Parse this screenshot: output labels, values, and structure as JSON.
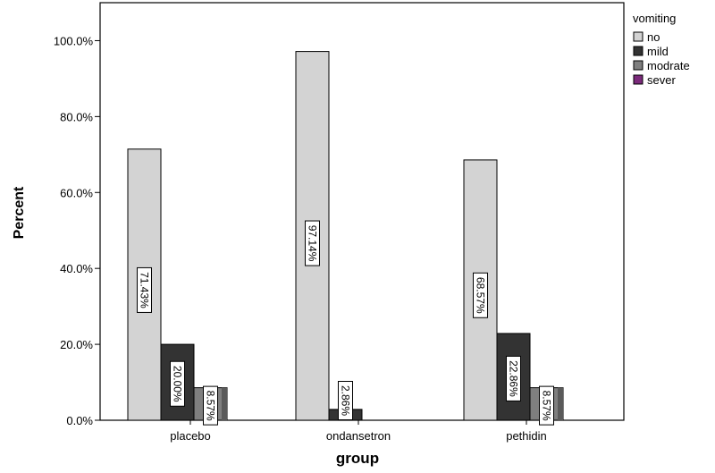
{
  "chart_data": {
    "type": "bar",
    "xlabel": "group",
    "ylabel": "Percent",
    "ylim": [
      0,
      110
    ],
    "yticks": [
      0,
      20,
      40,
      60,
      80,
      100
    ],
    "ytick_labels": [
      "0.0%",
      "20.0%",
      "40.0%",
      "60.0%",
      "80.0%",
      "100.0%"
    ],
    "categories": [
      "placebo",
      "ondansetron",
      "pethidin"
    ],
    "legend_title": "vomiting",
    "legend_position": "top-right",
    "grid": false,
    "series": [
      {
        "name": "no",
        "color": "#d3d3d3",
        "values": [
          71.43,
          97.14,
          68.57
        ],
        "labels": [
          "71.43%",
          "97.14%",
          "68.57%"
        ]
      },
      {
        "name": "mild",
        "color": "#333333",
        "values": [
          20.0,
          2.86,
          22.86
        ],
        "labels": [
          "20.00%",
          "2.86%",
          "22.86%"
        ]
      },
      {
        "name": "modrate",
        "color": "#7f7f7f",
        "values": [
          8.57,
          0,
          8.57
        ],
        "labels": [
          "8.57%",
          "",
          "8.57%"
        ]
      },
      {
        "name": "sever",
        "color": "#7b2a7b",
        "values": [
          0,
          0,
          0
        ],
        "labels": [
          "",
          "",
          ""
        ]
      }
    ]
  }
}
